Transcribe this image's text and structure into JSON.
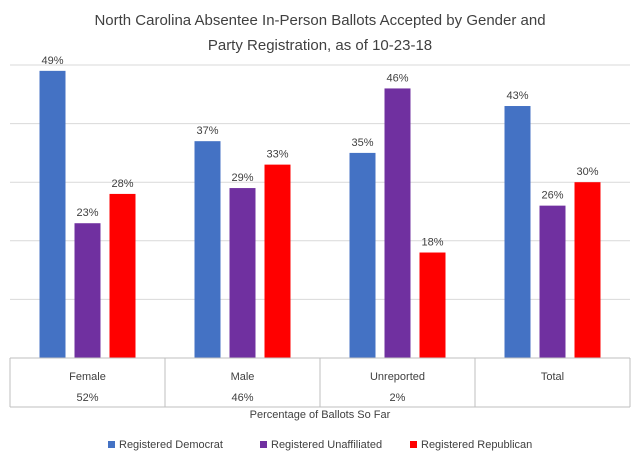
{
  "chart_data": {
    "type": "bar",
    "title_line1": "North Carolina Absentee In-Person Ballots Accepted by Gender and",
    "title_line2": "Party Registration, as of 10-23-18",
    "categories": [
      "Female",
      "Male",
      "Unreported",
      "Total"
    ],
    "category_sublabels": [
      "52%",
      "46%",
      "2%",
      ""
    ],
    "xlabel": "Percentage of Ballots So Far",
    "ylabel": "",
    "ylim": [
      0,
      50
    ],
    "y_gridlines": [
      10,
      20,
      30,
      40,
      50
    ],
    "y_tick_labels_shown": false,
    "grid": true,
    "legend_position": "bottom",
    "value_suffix": "%",
    "series": [
      {
        "name": "Registered Democrat",
        "values": [
          49,
          37,
          35,
          43
        ],
        "color": "#4472C4"
      },
      {
        "name": "Registered Unaffiliated",
        "values": [
          23,
          29,
          46,
          26
        ],
        "color": "#7030A0"
      },
      {
        "name": "Registered Republican",
        "values": [
          28,
          33,
          18,
          30
        ],
        "color": "#FF0000"
      }
    ]
  }
}
